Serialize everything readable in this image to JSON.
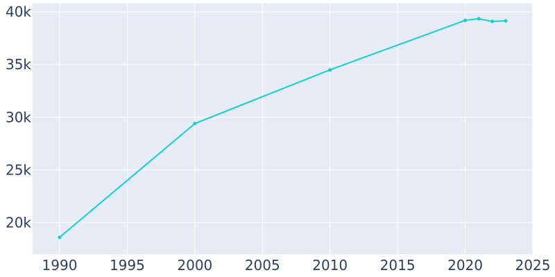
{
  "chart_data": {
    "type": "line",
    "title": "",
    "xlabel": "",
    "ylabel": "",
    "x": [
      1990,
      2000,
      2010,
      2020,
      2021,
      2022,
      2023
    ],
    "series": [
      {
        "values": [
          18600,
          29400,
          34500,
          39200,
          39350,
          39100,
          39150
        ]
      }
    ],
    "xlim": [
      1988,
      2025
    ],
    "ylim": [
      17000,
      40800
    ],
    "x_ticks": [
      1990,
      1995,
      2000,
      2005,
      2010,
      2015,
      2020,
      2025
    ],
    "x_tick_labels": [
      "1990",
      "1995",
      "2000",
      "2005",
      "2010",
      "2015",
      "2020",
      "2025"
    ],
    "y_ticks": [
      20000,
      25000,
      30000,
      35000,
      40000
    ],
    "y_tick_labels": [
      "20k",
      "25k",
      "30k",
      "35k",
      "40k"
    ],
    "grid": true,
    "legend": "none",
    "colors": {
      "plot_background": "#e5ecf6",
      "grid": "#ffffff",
      "line": "#17cfc7",
      "tick_text": "#2a3f5f"
    }
  }
}
